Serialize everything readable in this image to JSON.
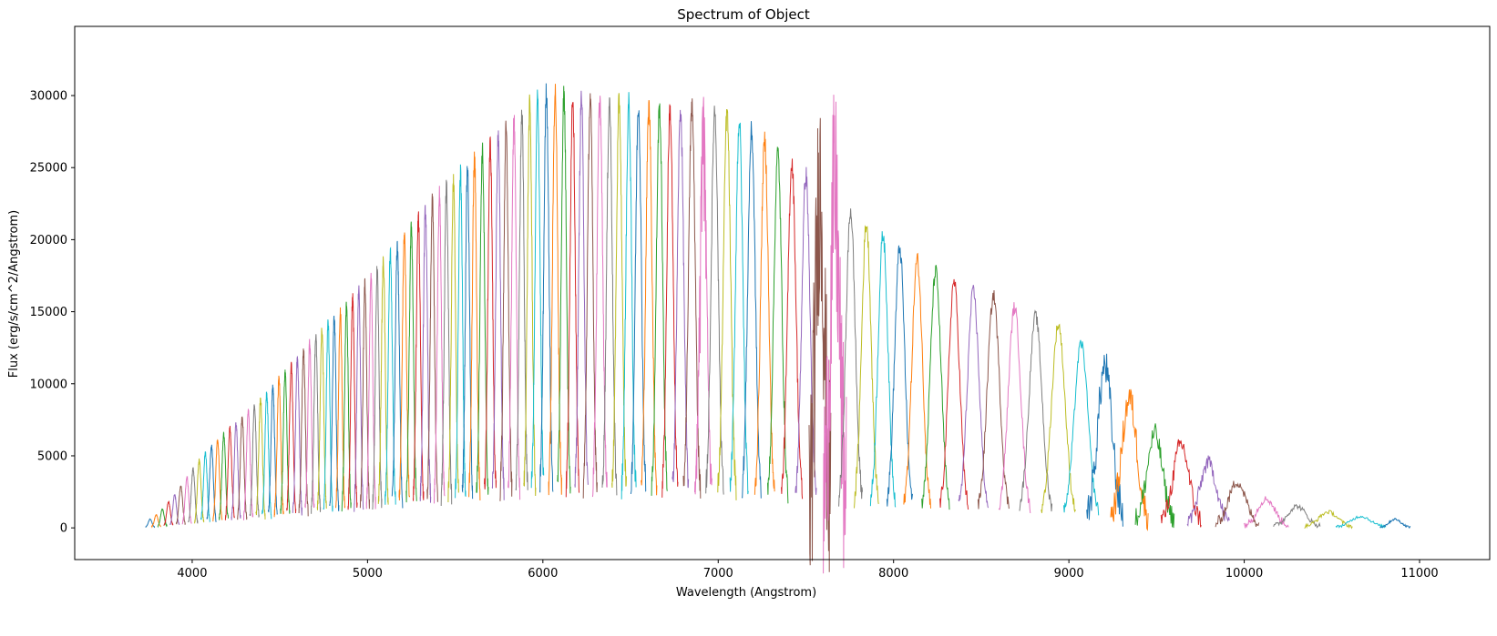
{
  "chart_data": {
    "type": "line",
    "title": "Spectrum of Object",
    "xlabel": "Wavelength (Angstrom)",
    "ylabel": "Flux (erg/s/cm^2/Angstrom)",
    "xlim": [
      3330,
      11400
    ],
    "ylim": [
      -2200,
      34800
    ],
    "x_ticks": [
      4000,
      5000,
      6000,
      7000,
      8000,
      9000,
      10000,
      11000
    ],
    "y_ticks": [
      0,
      5000,
      10000,
      15000,
      20000,
      25000,
      30000
    ],
    "grid": false,
    "legend": "none",
    "palette": [
      "#1f77b4",
      "#ff7f0e",
      "#2ca02c",
      "#d62728",
      "#9467bd",
      "#8c564b",
      "#e377c2",
      "#7f7f7f",
      "#bcbd22",
      "#17becf"
    ],
    "orders_envelope": {
      "description_units": "wavelength_center (Angstrom), peak flux",
      "centers": [
        3760,
        3795,
        3830,
        3865,
        3900,
        3935,
        3970,
        4005,
        4040,
        4075,
        4110,
        4145,
        4180,
        4215,
        4250,
        4285,
        4320,
        4355,
        4390,
        4425,
        4460,
        4495,
        4530,
        4565,
        4600,
        4635,
        4670,
        4705,
        4740,
        4775,
        4810,
        4845,
        4880,
        4915,
        4950,
        4985,
        5020,
        5055,
        5090,
        5130,
        5170,
        5210,
        5250,
        5290,
        5330,
        5370,
        5410,
        5450,
        5490,
        5530,
        5570,
        5610,
        5655,
        5700,
        5745,
        5790,
        5835,
        5880,
        5925,
        5970,
        6020,
        6070,
        6120,
        6170,
        6220,
        6270,
        6325,
        6380,
        6435,
        6490,
        6545,
        6605,
        6665,
        6725,
        6785,
        6850,
        6915,
        6980,
        7050,
        7120,
        7190,
        7265,
        7340,
        7420,
        7500,
        7580,
        7665,
        7755,
        7845,
        7940,
        8035,
        8135,
        8240,
        8345,
        8455,
        8570,
        8690,
        8810,
        8940,
        9070,
        9205,
        9345,
        9490,
        9640,
        9795,
        9960,
        10125,
        10300,
        10480,
        10665,
        10860
      ],
      "peaks": [
        600,
        900,
        1300,
        1800,
        2300,
        2900,
        3500,
        4100,
        4700,
        5200,
        5700,
        6100,
        6500,
        6900,
        7300,
        7700,
        8100,
        8500,
        8900,
        9300,
        9800,
        10300,
        10800,
        11300,
        11800,
        12300,
        12800,
        13300,
        13700,
        14100,
        14500,
        14900,
        15400,
        15900,
        16400,
        16900,
        17400,
        17900,
        18400,
        19000,
        19600,
        20200,
        20800,
        21400,
        22000,
        22600,
        23100,
        23600,
        24100,
        24600,
        25100,
        25600,
        26100,
        26600,
        27100,
        27600,
        28200,
        28800,
        29300,
        29800,
        30200,
        30300,
        30100,
        30000,
        29900,
        29800,
        29700,
        29600,
        29500,
        29400,
        29300,
        29200,
        29100,
        29000,
        28900,
        29200,
        29300,
        29000,
        28700,
        28200,
        27500,
        26800,
        26000,
        25300,
        24500,
        23600,
        22800,
        22000,
        21100,
        20300,
        19400,
        18600,
        17800,
        17100,
        16400,
        16100,
        15300,
        14700,
        14100,
        12800,
        11200,
        9000,
        6500,
        5800,
        4500,
        3200,
        2000,
        1500,
        1100,
        800,
        600
      ]
    }
  }
}
